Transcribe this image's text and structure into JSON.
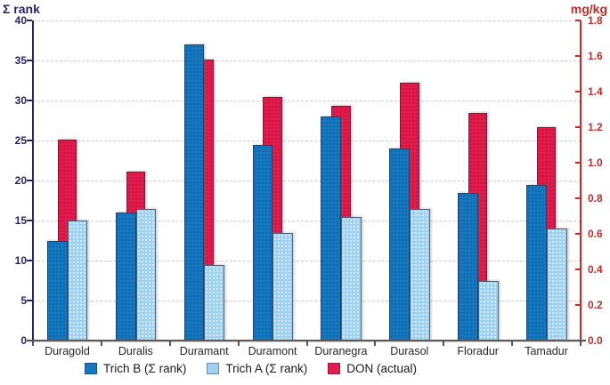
{
  "chart": {
    "left_axis_title": "Σ rank",
    "right_axis_title": "mg/kg",
    "left_axis_color": "#29256b",
    "right_axis_color": "#c92a2a",
    "left_tick_labels": [
      "40",
      "35",
      "30",
      "25",
      "20",
      "15",
      "10",
      "5",
      "0"
    ],
    "right_tick_labels": [
      "1.8",
      "1.6",
      "1.4",
      "1.2",
      "1.0",
      "0.8",
      "0.6",
      "0.4",
      "0.2",
      "0.0"
    ]
  },
  "chart_data": {
    "type": "bar",
    "categories": [
      "Duragold",
      "Duralis",
      "Duramant",
      "Duramont",
      "Duranegra",
      "Durasol",
      "Floradur",
      "Tamadur"
    ],
    "series": [
      {
        "name": "Trich B (Σ rank)",
        "axis": "left",
        "color": "#1478c0",
        "values": [
          12.5,
          16,
          37,
          24.5,
          28,
          24,
          18.5,
          19.5
        ]
      },
      {
        "name": "Trich A (Σ rank)",
        "axis": "left",
        "color": "#9ed2f0",
        "values": [
          15,
          16.5,
          9.5,
          13.5,
          15.5,
          16.5,
          7.5,
          14
        ]
      },
      {
        "name": "DON (actual)",
        "axis": "right",
        "color": "#e51a4c",
        "values": [
          1.13,
          0.95,
          1.58,
          1.37,
          1.32,
          1.45,
          1.28,
          1.2
        ]
      }
    ],
    "left_ylim": [
      0,
      40
    ],
    "right_ylim": [
      0,
      1.8
    ],
    "grid": true,
    "legend_position": "bottom"
  }
}
